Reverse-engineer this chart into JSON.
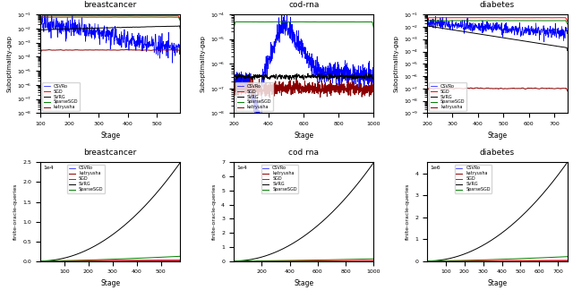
{
  "datasets": [
    "breastcancer",
    "cod-rna",
    "diabetes"
  ],
  "top_ylabel": "Suboptimality-gap",
  "bottom_ylabel_bc": "finite-oracle-queries",
  "bottom_ylabel_cr": "finite-oracle-queries",
  "bottom_ylabel_db": "finite-oracle-queries",
  "xlabel": "Stage",
  "bc_top": {
    "xlim": [
      100,
      580
    ],
    "xticks": [
      100,
      200,
      300,
      400,
      500
    ],
    "ylim": [
      1e-08,
      0.1
    ]
  },
  "cr_top": {
    "xlim": [
      200,
      1000
    ],
    "xticks": [
      200,
      400,
      600,
      800,
      1000
    ],
    "ylim": [
      1e-08,
      0.0001
    ]
  },
  "db_top": {
    "xlim": [
      200,
      750
    ],
    "xticks": [
      200,
      300,
      400,
      500,
      600,
      700
    ],
    "ylim": [
      1e-09,
      0.1
    ]
  },
  "bc_bottom": {
    "xlim": [
      0,
      580
    ],
    "xticks": [
      100,
      200,
      300,
      400,
      500
    ],
    "ylim": [
      0,
      2.5
    ],
    "label": "1e4"
  },
  "cr_bottom": {
    "xlim": [
      0,
      1000
    ],
    "xticks": [
      200,
      400,
      600,
      800,
      1000
    ],
    "ylim": [
      0,
      7
    ],
    "label": "1e4"
  },
  "db_bottom": {
    "xlim": [
      0,
      750
    ],
    "xticks": [
      100,
      200,
      300,
      400,
      500,
      600,
      700
    ],
    "ylim": [
      0,
      4.5
    ],
    "label": "1e6"
  }
}
